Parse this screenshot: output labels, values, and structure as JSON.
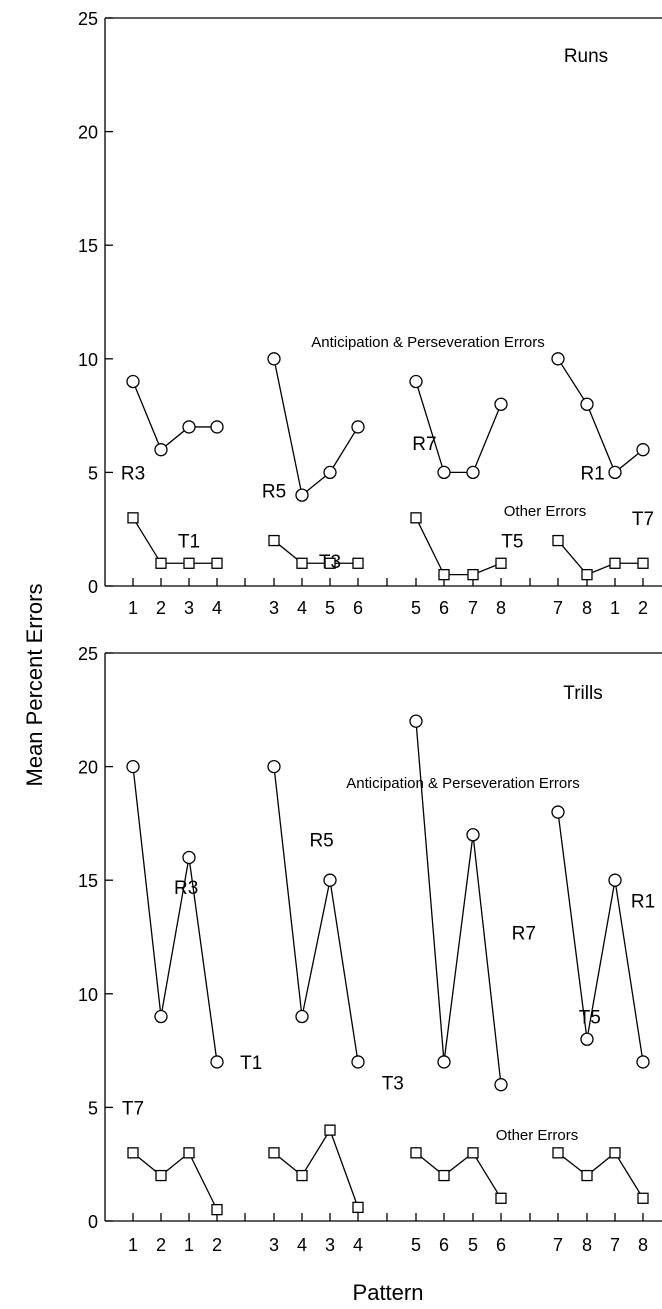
{
  "y_axis_label": "Mean Percent Errors",
  "x_axis_label": "Pattern",
  "chart_data": [
    {
      "type": "line",
      "title": "Runs",
      "ylim": [
        0,
        25
      ],
      "yticks": [
        0,
        5,
        10,
        15,
        20,
        25
      ],
      "tick_labels": [
        "1",
        "2",
        "3",
        "4",
        "3",
        "4",
        "5",
        "6",
        "5",
        "6",
        "7",
        "8",
        "7",
        "8",
        "1",
        "2"
      ],
      "series": [
        {
          "name": "Anticipation & Perseveration Errors",
          "marker": "circle",
          "groups": [
            [
              9,
              6,
              7,
              7
            ],
            [
              10,
              4,
              5,
              7
            ],
            [
              9,
              5,
              5,
              8
            ],
            [
              10,
              8,
              5,
              6
            ]
          ]
        },
        {
          "name": "Other Errors",
          "marker": "square",
          "groups": [
            [
              3,
              1,
              1,
              1
            ],
            [
              2,
              1,
              1,
              1
            ],
            [
              3,
              0.5,
              0.5,
              1
            ],
            [
              2,
              0.5,
              1,
              1
            ]
          ]
        }
      ],
      "annotations": [
        {
          "text": "R3",
          "x": 1,
          "y": 5
        },
        {
          "text": "T1",
          "x": 3,
          "y": 2
        },
        {
          "text": "R5",
          "x": 5,
          "y": 4.2
        },
        {
          "text": "T3",
          "x": 7,
          "y": 1.1
        },
        {
          "text": "R7",
          "x": 9.3,
          "y": 6.3
        },
        {
          "text": "T5",
          "x": 12.2,
          "y": 2
        },
        {
          "text": "R1",
          "x": 14.2,
          "y": 5
        },
        {
          "text": "T7",
          "x": 16.3,
          "y": 3
        }
      ]
    },
    {
      "type": "line",
      "title": "Trills",
      "ylim": [
        0,
        25
      ],
      "yticks": [
        0,
        5,
        10,
        15,
        20,
        25
      ],
      "tick_labels": [
        "1",
        "2",
        "1",
        "2",
        "3",
        "4",
        "3",
        "4",
        "5",
        "6",
        "5",
        "6",
        "7",
        "8",
        "7",
        "8"
      ],
      "series": [
        {
          "name": "Anticipation & Perseveration Errors",
          "marker": "circle",
          "groups": [
            [
              20,
              9,
              16,
              7
            ],
            [
              20,
              9,
              15,
              7
            ],
            [
              22,
              7,
              17,
              6
            ],
            [
              18,
              8,
              15,
              7
            ]
          ]
        },
        {
          "name": "Other Errors",
          "marker": "square",
          "groups": [
            [
              3,
              2,
              3,
              0.5
            ],
            [
              3,
              2,
              4,
              0.6
            ],
            [
              3,
              2,
              3,
              1
            ],
            [
              3,
              2,
              3,
              1
            ]
          ]
        }
      ],
      "annotations": [
        {
          "text": "R3",
          "x": 2.9,
          "y": 14.7
        },
        {
          "text": "T7",
          "x": 0.9,
          "y": 5
        },
        {
          "text": "R5",
          "x": 6.7,
          "y": 16.8
        },
        {
          "text": "T1",
          "x": 4.6,
          "y": 7
        },
        {
          "text": "R7",
          "x": 12.4,
          "y": 12.7
        },
        {
          "text": "T3",
          "x": 8.6,
          "y": 6.1
        },
        {
          "text": "R1",
          "x": 16.1,
          "y": 14.1
        },
        {
          "text": "T5",
          "x": 14.1,
          "y": 9
        }
      ]
    }
  ],
  "panel_labels": [
    {
      "other_errors": "Other Errors",
      "ant_pers": "Anticipation & Perseveration Errors"
    },
    {
      "other_errors": "Other Errors",
      "ant_pers": "Anticipation & Perseveration Errors"
    }
  ]
}
